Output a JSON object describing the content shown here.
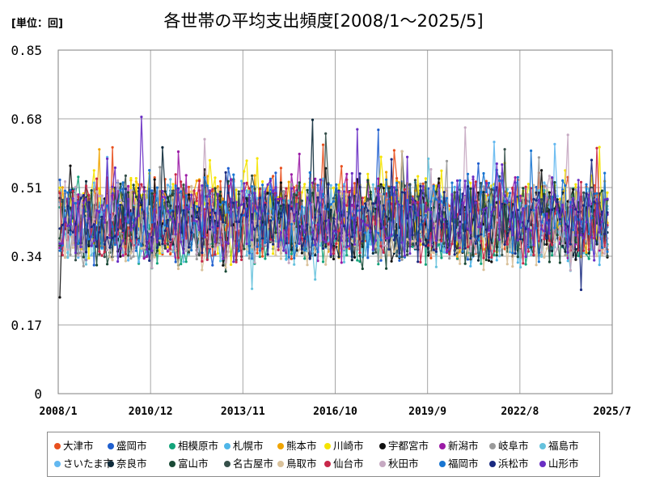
{
  "unit_label": "[単位：回]",
  "chart_data": {
    "type": "line",
    "title": "各世帯の平均支出頻度[2008/1～2025/5]",
    "xlabel": "",
    "ylabel": "",
    "ylim": [
      0,
      0.85
    ],
    "y_ticks": [
      "0",
      "0.17",
      "0.34",
      "0.51",
      "0.68",
      "0.85"
    ],
    "y_tick_values": [
      0,
      0.17,
      0.34,
      0.51,
      0.68,
      0.85
    ],
    "x_tick_labels": [
      "2008/1",
      "2010/12",
      "2013/11",
      "2016/10",
      "2019/9",
      "2022/8",
      "2025/7"
    ],
    "grid": true,
    "legend_position": "bottom",
    "series": [
      {
        "name": "大津市",
        "color": "#e8501e",
        "base": 0.44,
        "spread": 0.09,
        "seed": 11
      },
      {
        "name": "盛岡市",
        "color": "#1f5fcf",
        "base": 0.43,
        "spread": 0.09,
        "seed": 23
      },
      {
        "name": "相模原市",
        "color": "#13a37a",
        "base": 0.41,
        "spread": 0.08,
        "seed": 37
      },
      {
        "name": "札幌市",
        "color": "#4fb6e8",
        "base": 0.42,
        "spread": 0.08,
        "seed": 41
      },
      {
        "name": "熊本市",
        "color": "#f0a400",
        "base": 0.44,
        "spread": 0.08,
        "seed": 53
      },
      {
        "name": "川崎市",
        "color": "#f5e400",
        "base": 0.45,
        "spread": 0.09,
        "seed": 67
      },
      {
        "name": "宇都宮市",
        "color": "#111111",
        "base": 0.42,
        "spread": 0.09,
        "seed": 71
      },
      {
        "name": "新潟市",
        "color": "#9b1ba6",
        "base": 0.43,
        "spread": 0.09,
        "seed": 83
      },
      {
        "name": "岐阜市",
        "color": "#9a9a9a",
        "base": 0.42,
        "spread": 0.08,
        "seed": 97
      },
      {
        "name": "福島市",
        "color": "#66c2dd",
        "base": 0.41,
        "spread": 0.08,
        "seed": 101
      },
      {
        "name": "さいたま市",
        "color": "#63b8f0",
        "base": 0.42,
        "spread": 0.08,
        "seed": 113
      },
      {
        "name": "奈良市",
        "color": "#0d2a3a",
        "base": 0.42,
        "spread": 0.08,
        "seed": 127
      },
      {
        "name": "富山市",
        "color": "#1a4a36",
        "base": 0.42,
        "spread": 0.09,
        "seed": 131
      },
      {
        "name": "名古屋市",
        "color": "#36504a",
        "base": 0.43,
        "spread": 0.08,
        "seed": 149
      },
      {
        "name": "鳥取市",
        "color": "#d9c19a",
        "base": 0.41,
        "spread": 0.08,
        "seed": 157
      },
      {
        "name": "仙台市",
        "color": "#c8284a",
        "base": 0.43,
        "spread": 0.09,
        "seed": 163
      },
      {
        "name": "秋田市",
        "color": "#c6a9c2",
        "base": 0.42,
        "spread": 0.08,
        "seed": 173
      },
      {
        "name": "福岡市",
        "color": "#1875d1",
        "base": 0.44,
        "spread": 0.09,
        "seed": 181
      },
      {
        "name": "浜松市",
        "color": "#1a2a80",
        "base": 0.43,
        "spread": 0.08,
        "seed": 191
      },
      {
        "name": "山形市",
        "color": "#6a2fc4",
        "base": 0.43,
        "spread": 0.09,
        "seed": 199
      }
    ]
  }
}
